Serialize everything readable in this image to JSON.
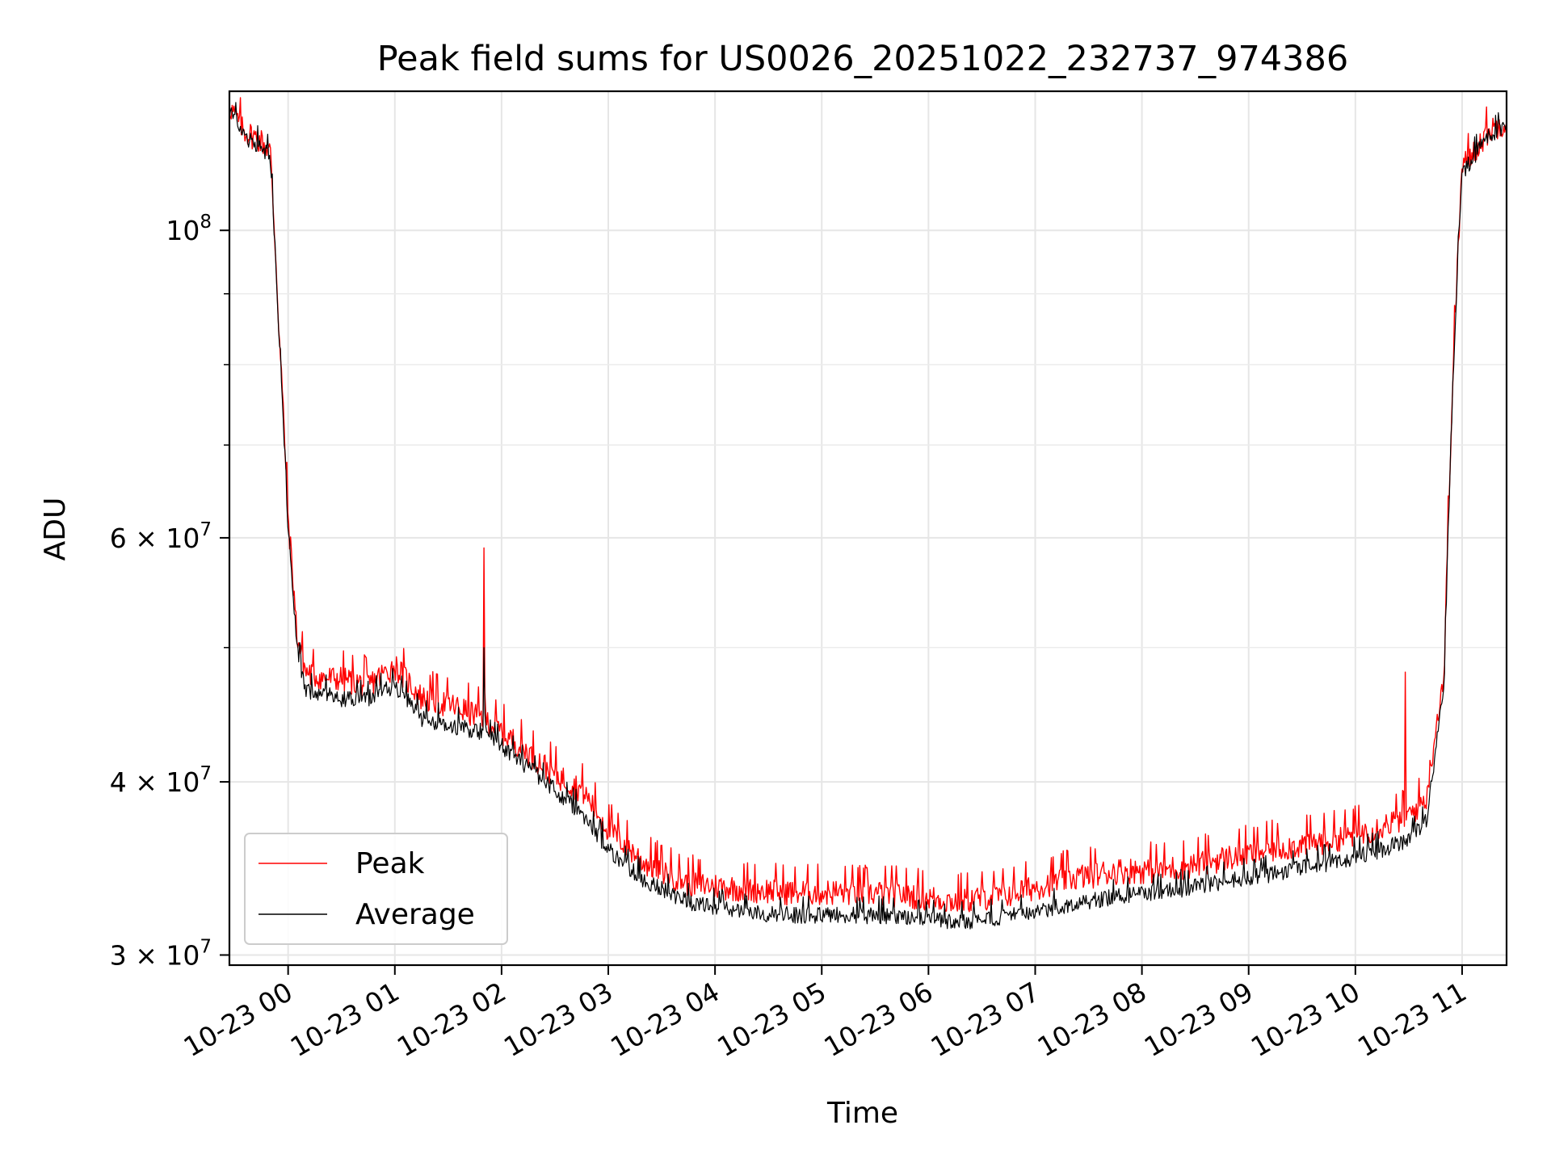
{
  "chart_data": {
    "type": "line",
    "title": "Peak field sums for US0026_20251022_232737_974386",
    "xlabel": "Time",
    "ylabel": "ADU",
    "yscale": "log",
    "ylim": [
      29500000,
      126000000
    ],
    "xlim": [
      "2025-10-22 23:27",
      "2025-10-23 11:25"
    ],
    "grid": true,
    "legend_position": "lower-left",
    "x_ticks": [
      "10-23 00",
      "10-23 01",
      "10-23 02",
      "10-23 03",
      "10-23 04",
      "10-23 05",
      "10-23 06",
      "10-23 07",
      "10-23 08",
      "10-23 09",
      "10-23 10",
      "10-23 11"
    ],
    "y_ticks": [
      {
        "value": 30000000,
        "mantissa": "3",
        "exponent": "7"
      },
      {
        "value": 40000000,
        "mantissa": "4",
        "exponent": "7"
      },
      {
        "value": 60000000,
        "mantissa": "6",
        "exponent": "7"
      },
      {
        "value": 100000000,
        "mantissa": "",
        "exponent": "8"
      }
    ],
    "y_minor_ticks": [
      50000000,
      70000000,
      80000000,
      90000000
    ],
    "x": [
      "2025-10-22 23:27",
      "2025-10-22 23:35",
      "2025-10-22 23:45",
      "2025-10-22 23:50",
      "2025-10-22 23:55",
      "2025-10-23 00:00",
      "2025-10-23 00:05",
      "2025-10-23 00:10",
      "2025-10-23 00:20",
      "2025-10-23 00:30",
      "2025-10-23 00:45",
      "2025-10-23 01:00",
      "2025-10-23 01:15",
      "2025-10-23 01:30",
      "2025-10-23 01:50",
      "2025-10-23 02:15",
      "2025-10-23 02:30",
      "2025-10-23 02:45",
      "2025-10-23 03:00",
      "2025-10-23 03:20",
      "2025-10-23 03:45",
      "2025-10-23 04:15",
      "2025-10-23 04:45",
      "2025-10-23 05:15",
      "2025-10-23 05:45",
      "2025-10-23 06:15",
      "2025-10-23 06:45",
      "2025-10-23 07:15",
      "2025-10-23 07:45",
      "2025-10-23 08:15",
      "2025-10-23 08:45",
      "2025-10-23 09:15",
      "2025-10-23 09:45",
      "2025-10-23 10:10",
      "2025-10-23 10:30",
      "2025-10-23 10:40",
      "2025-10-23 10:50",
      "2025-10-23 11:00",
      "2025-10-23 11:15",
      "2025-10-23 11:25"
    ],
    "series": [
      {
        "name": "Peak",
        "color": "#ff0000",
        "values": [
          123000000,
          118000000,
          116000000,
          114000000,
          84000000,
          62000000,
          51000000,
          48000000,
          47500000,
          47500000,
          47000000,
          48500000,
          46000000,
          45500000,
          44500000,
          42000000,
          40500000,
          39500000,
          37000000,
          35000000,
          33800000,
          33500000,
          33300000,
          33300000,
          33200000,
          32800000,
          33200000,
          34000000,
          34500000,
          34600000,
          35200000,
          35800000,
          36300000,
          37000000,
          37800000,
          39000000,
          48000000,
          111000000,
          118000000,
          120000000
        ]
      },
      {
        "name": "Average",
        "color": "#000000",
        "values": [
          122000000,
          117000000,
          115000000,
          113000000,
          83000000,
          61000000,
          50000000,
          46500000,
          46500000,
          46000000,
          46000000,
          47000000,
          44500000,
          44000000,
          43500000,
          41000000,
          39500000,
          38000000,
          35800000,
          34000000,
          32800000,
          32200000,
          32100000,
          32100000,
          32000000,
          31700000,
          32000000,
          32600000,
          33100000,
          33400000,
          33900000,
          34400000,
          35000000,
          35600000,
          36400000,
          37500000,
          47000000,
          110000000,
          117000000,
          119000000
        ]
      }
    ],
    "spikes": [
      {
        "series": "Peak",
        "x": "2025-10-23 01:50",
        "value": 59000000
      },
      {
        "series": "Average",
        "x": "2025-10-23 01:50",
        "value": 50000000
      },
      {
        "series": "Peak",
        "x": "2025-10-23 10:28",
        "value": 48000000
      }
    ]
  }
}
